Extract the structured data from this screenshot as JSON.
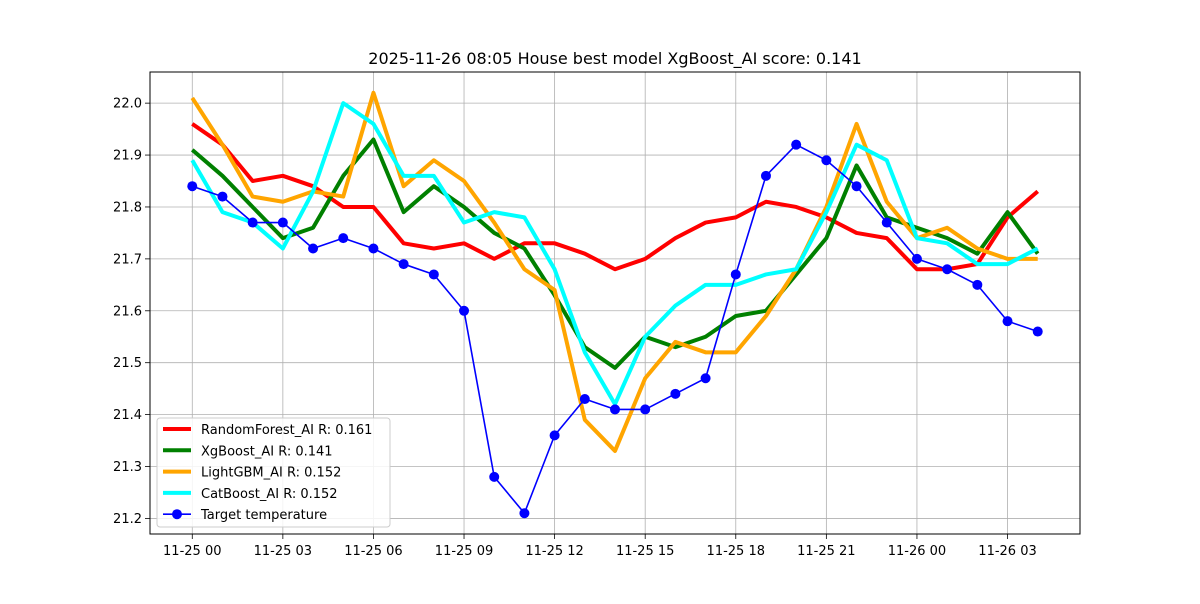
{
  "chart_data": {
    "type": "line",
    "title": "2025-11-26 08:05 House best model XgBoost_AI score: 0.141",
    "xlabel": "",
    "ylabel": "",
    "grid": true,
    "legend_position": "lower-left",
    "xlim": [
      -1.4,
      29.4
    ],
    "ylim": [
      21.17,
      22.06
    ],
    "x_ticks": [
      {
        "x": 0,
        "label": "11-25 00"
      },
      {
        "x": 3,
        "label": "11-25 03"
      },
      {
        "x": 6,
        "label": "11-25 06"
      },
      {
        "x": 9,
        "label": "11-25 09"
      },
      {
        "x": 12,
        "label": "11-25 12"
      },
      {
        "x": 15,
        "label": "11-25 15"
      },
      {
        "x": 18,
        "label": "11-25 18"
      },
      {
        "x": 21,
        "label": "11-25 21"
      },
      {
        "x": 24,
        "label": "11-26 00"
      },
      {
        "x": 27,
        "label": "11-26 03"
      }
    ],
    "y_ticks": [
      {
        "y": 21.2,
        "label": "21.2"
      },
      {
        "y": 21.3,
        "label": "21.3"
      },
      {
        "y": 21.4,
        "label": "21.4"
      },
      {
        "y": 21.5,
        "label": "21.5"
      },
      {
        "y": 21.6,
        "label": "21.6"
      },
      {
        "y": 21.7,
        "label": "21.7"
      },
      {
        "y": 21.8,
        "label": "21.8"
      },
      {
        "y": 21.9,
        "label": "21.9"
      },
      {
        "y": 22.0,
        "label": "22.0"
      }
    ],
    "x_hours": [
      0,
      1,
      2,
      3,
      4,
      5,
      6,
      7,
      8,
      9,
      10,
      11,
      12,
      13,
      14,
      15,
      16,
      17,
      18,
      19,
      20,
      21,
      22,
      23,
      24,
      25,
      26,
      27,
      28
    ],
    "series": [
      {
        "name": "RandomForest_AI R: 0.161",
        "color": "#ff0000",
        "style": "thick-line",
        "values": [
          21.96,
          21.92,
          21.85,
          21.86,
          21.84,
          21.8,
          21.8,
          21.73,
          21.72,
          21.73,
          21.7,
          21.73,
          21.73,
          21.71,
          21.68,
          21.7,
          21.74,
          21.77,
          21.78,
          21.81,
          21.8,
          21.78,
          21.75,
          21.74,
          21.68,
          21.68,
          21.69,
          21.78,
          21.83
        ]
      },
      {
        "name": "XgBoost_AI R: 0.141",
        "color": "#008000",
        "style": "thick-line",
        "values": [
          21.91,
          21.86,
          21.8,
          21.74,
          21.76,
          21.86,
          21.93,
          21.79,
          21.84,
          21.8,
          21.75,
          21.72,
          21.63,
          21.53,
          21.49,
          21.55,
          21.53,
          21.55,
          21.59,
          21.6,
          21.67,
          21.74,
          21.88,
          21.78,
          21.76,
          21.74,
          21.71,
          21.79,
          21.71
        ]
      },
      {
        "name": "LightGBM_AI R: 0.152",
        "color": "#ffa500",
        "style": "thick-line",
        "values": [
          22.01,
          21.92,
          21.82,
          21.81,
          21.83,
          21.82,
          22.02,
          21.84,
          21.89,
          21.85,
          21.77,
          21.68,
          21.64,
          21.39,
          21.33,
          21.47,
          21.54,
          21.52,
          21.52,
          21.59,
          21.68,
          21.8,
          21.96,
          21.81,
          21.74,
          21.76,
          21.72,
          21.7,
          21.7
        ]
      },
      {
        "name": "CatBoost_AI R: 0.152",
        "color": "#00ffff",
        "style": "thick-line",
        "values": [
          21.89,
          21.79,
          21.77,
          21.72,
          21.83,
          22.0,
          21.96,
          21.86,
          21.86,
          21.77,
          21.79,
          21.78,
          21.68,
          21.52,
          21.42,
          21.55,
          21.61,
          21.65,
          21.65,
          21.67,
          21.68,
          21.79,
          21.92,
          21.89,
          21.74,
          21.73,
          21.69,
          21.69,
          21.72
        ]
      },
      {
        "name": "Target temperature",
        "color": "#0000ff",
        "style": "line-markers",
        "values": [
          21.84,
          21.82,
          21.77,
          21.77,
          21.72,
          21.74,
          21.72,
          21.69,
          21.67,
          21.6,
          21.28,
          21.21,
          21.36,
          21.43,
          21.41,
          21.41,
          21.44,
          21.47,
          21.67,
          21.86,
          21.92,
          21.89,
          21.84,
          21.77,
          21.7,
          21.68,
          21.65,
          21.58,
          21.56
        ]
      }
    ]
  }
}
